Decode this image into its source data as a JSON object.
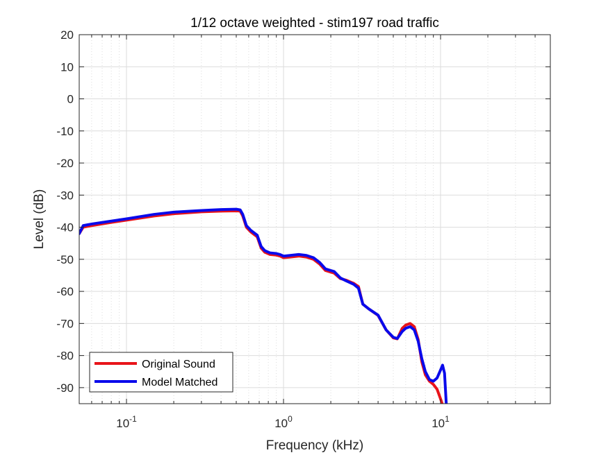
{
  "chart_data": {
    "type": "line",
    "title": "1/12 octave weighted - stim197 road traffic",
    "xlabel": "Frequency (kHz)",
    "ylabel": "Level (dB)",
    "xscale": "log",
    "xlim": [
      0.05,
      50
    ],
    "ylim": [
      -95,
      20
    ],
    "grid": true,
    "legend_position": "bottom-left",
    "x_ticks": [
      {
        "value": 0.1,
        "base": "10",
        "exp": "-1"
      },
      {
        "value": 1,
        "base": "10",
        "exp": "0"
      },
      {
        "value": 10,
        "base": "10",
        "exp": "1"
      }
    ],
    "y_ticks": [
      20,
      10,
      0,
      -10,
      -20,
      -30,
      -40,
      -50,
      -60,
      -70,
      -80,
      -90
    ],
    "series": [
      {
        "name": "Original Sound",
        "color": "#e8141a",
        "x": [
          0.05,
          0.053,
          0.06,
          0.08,
          0.1,
          0.15,
          0.2,
          0.3,
          0.4,
          0.5,
          0.53,
          0.55,
          0.58,
          0.62,
          0.68,
          0.72,
          0.76,
          0.82,
          0.9,
          0.95,
          1.0,
          1.1,
          1.25,
          1.4,
          1.55,
          1.7,
          1.85,
          2.0,
          2.1,
          2.3,
          2.5,
          2.8,
          3.0,
          3.2,
          3.5,
          4.0,
          4.5,
          5.0,
          5.3,
          5.7,
          6.0,
          6.4,
          6.8,
          7.2,
          7.6,
          8.0,
          8.5,
          9.0,
          9.5,
          10.0,
          10.4
        ],
        "values": [
          -42,
          -40,
          -39.5,
          -38.5,
          -37.8,
          -36.5,
          -35.8,
          -35.2,
          -35,
          -34.9,
          -35,
          -36.5,
          -40,
          -41.5,
          -43,
          -46.5,
          -47.8,
          -48.5,
          -48.7,
          -49,
          -49.5,
          -49.3,
          -49,
          -49.3,
          -50,
          -51.5,
          -53.5,
          -54,
          -54.3,
          -56,
          -56.5,
          -57.5,
          -58.5,
          -64,
          -65.5,
          -67.5,
          -72,
          -74.5,
          -74.8,
          -71.5,
          -70.5,
          -70,
          -71,
          -75,
          -82,
          -86,
          -88,
          -89,
          -90.5,
          -93.5,
          -96
        ]
      },
      {
        "name": "Model Matched",
        "color": "#0a0aeb",
        "x": [
          0.05,
          0.053,
          0.06,
          0.08,
          0.1,
          0.15,
          0.2,
          0.3,
          0.4,
          0.5,
          0.53,
          0.55,
          0.58,
          0.62,
          0.68,
          0.72,
          0.76,
          0.82,
          0.9,
          0.95,
          1.0,
          1.1,
          1.25,
          1.4,
          1.55,
          1.7,
          1.85,
          2.0,
          2.1,
          2.3,
          2.5,
          2.8,
          3.0,
          3.2,
          3.5,
          4.0,
          4.5,
          5.0,
          5.3,
          5.7,
          6.0,
          6.4,
          6.8,
          7.2,
          7.6,
          8.0,
          8.5,
          9.0,
          9.5,
          10.0,
          10.3,
          10.6,
          10.9
        ],
        "values": [
          -42,
          -39.5,
          -39,
          -38.1,
          -37.4,
          -36,
          -35.3,
          -34.8,
          -34.5,
          -34.4,
          -34.6,
          -36,
          -39.5,
          -41,
          -42.5,
          -46,
          -47.3,
          -48,
          -48.2,
          -48.5,
          -49,
          -48.8,
          -48.5,
          -48.8,
          -49.5,
          -51,
          -53,
          -53.5,
          -53.8,
          -55.8,
          -56.7,
          -57.8,
          -59,
          -64,
          -65.5,
          -67.4,
          -72,
          -74.3,
          -74.7,
          -72.5,
          -71.5,
          -71,
          -72,
          -75.5,
          -81,
          -85,
          -87.5,
          -88,
          -87,
          -84.5,
          -83,
          -85.5,
          -96
        ]
      }
    ]
  }
}
